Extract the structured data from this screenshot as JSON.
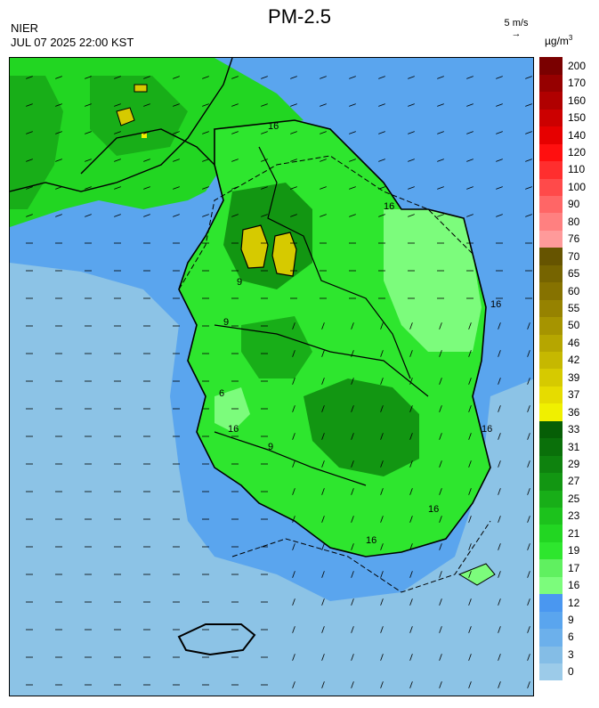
{
  "title": "PM-2.5",
  "agency": "NIER",
  "timestamp": "JUL 07 2025 22:00 KST",
  "wind_ref": {
    "label": "5 m/s",
    "arrow": "→"
  },
  "unit": {
    "base": "µg/m",
    "sup": "3"
  },
  "contour_labels": [
    "16",
    "16",
    "16",
    "16",
    "9",
    "9",
    "16",
    "6",
    "9",
    "16",
    "16"
  ],
  "legend": [
    {
      "value": "0",
      "color": "#9ccbe9"
    },
    {
      "value": "3",
      "color": "#84bde6"
    },
    {
      "value": "6",
      "color": "#6cb0eb"
    },
    {
      "value": "9",
      "color": "#5aa5ee"
    },
    {
      "value": "12",
      "color": "#4a97f0"
    },
    {
      "value": "16",
      "color": "#7cfc7c"
    },
    {
      "value": "17",
      "color": "#60f060"
    },
    {
      "value": "19",
      "color": "#2ee62e"
    },
    {
      "value": "21",
      "color": "#22d622"
    },
    {
      "value": "23",
      "color": "#1cc21c"
    },
    {
      "value": "25",
      "color": "#18ae18"
    },
    {
      "value": "27",
      "color": "#129612"
    },
    {
      "value": "29",
      "color": "#0e820e"
    },
    {
      "value": "31",
      "color": "#0a700a"
    },
    {
      "value": "33",
      "color": "#065e06"
    },
    {
      "value": "36",
      "color": "#f0f000"
    },
    {
      "value": "37",
      "color": "#e6dc00"
    },
    {
      "value": "39",
      "color": "#d6ca00"
    },
    {
      "value": "42",
      "color": "#c6b800"
    },
    {
      "value": "46",
      "color": "#b6a600"
    },
    {
      "value": "50",
      "color": "#a69400"
    },
    {
      "value": "55",
      "color": "#968200"
    },
    {
      "value": "60",
      "color": "#867200"
    },
    {
      "value": "65",
      "color": "#766400"
    },
    {
      "value": "70",
      "color": "#665400"
    },
    {
      "value": "76",
      "color": "#ff9a9a"
    },
    {
      "value": "80",
      "color": "#ff8080"
    },
    {
      "value": "90",
      "color": "#ff6666"
    },
    {
      "value": "100",
      "color": "#ff4a4a"
    },
    {
      "value": "110",
      "color": "#ff2e2e"
    },
    {
      "value": "120",
      "color": "#ff0f0f"
    },
    {
      "value": "140",
      "color": "#e60000"
    },
    {
      "value": "150",
      "color": "#cc0000"
    },
    {
      "value": "160",
      "color": "#b00000"
    },
    {
      "value": "170",
      "color": "#960000"
    },
    {
      "value": "200",
      "color": "#7a0000"
    }
  ],
  "colors": {
    "sea_light": "#8cc3e6",
    "sea_mid": "#5aa5ee",
    "land_green": "#2ee62e",
    "land_dark": "#129612",
    "hotspot": "#d6ca00"
  }
}
